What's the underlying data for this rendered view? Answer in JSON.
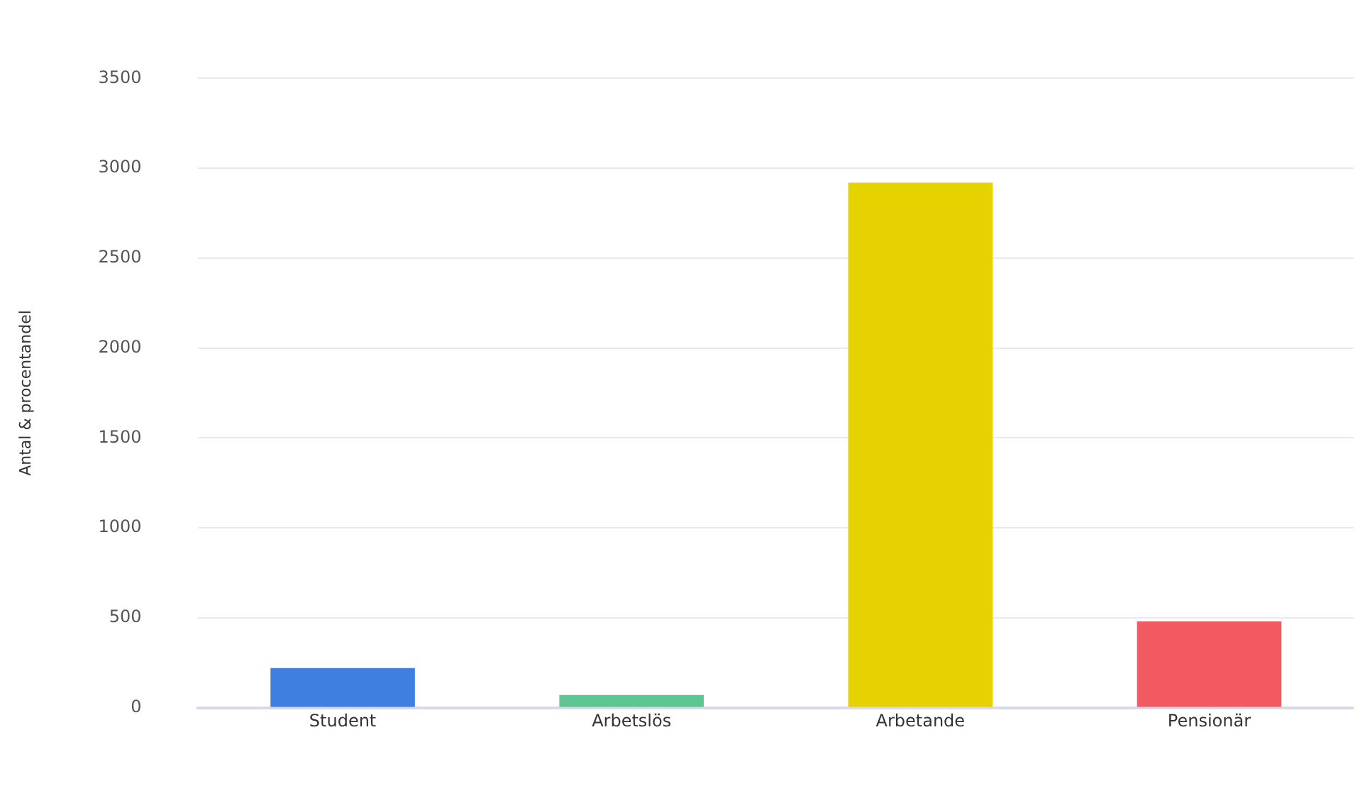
{
  "chart_data": {
    "type": "bar",
    "ylabel": "Antal & procentandel",
    "categories": [
      "Student",
      "Arbetslös",
      "Arbetande",
      "Pensionär"
    ],
    "values": [
      220,
      70,
      2920,
      480
    ],
    "colors": [
      "#3f7fe0",
      "#5cc591",
      "#e5d200",
      "#f25a62"
    ],
    "ylim": [
      0,
      3500
    ],
    "yticks": [
      0,
      500,
      1000,
      1500,
      2000,
      2500,
      3000,
      3500
    ],
    "grid": "y",
    "legend": false
  }
}
